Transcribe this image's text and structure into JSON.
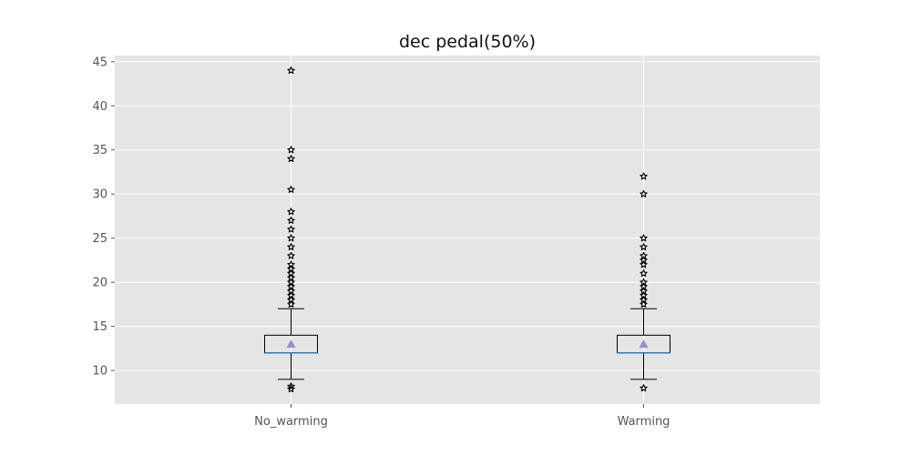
{
  "chart_data": {
    "type": "box",
    "title": "dec pedal(50%)",
    "xlabel": "",
    "ylabel": "",
    "categories": [
      "No_warming",
      "Warming"
    ],
    "ylim": [
      6.2,
      45.7
    ],
    "yticks": [
      10,
      15,
      20,
      25,
      30,
      35,
      40,
      45
    ],
    "grid": true,
    "boxes": [
      {
        "category": "No_warming",
        "whisker_low": 9,
        "q1": 12,
        "median": 12,
        "q3": 14,
        "whisker_high": 17,
        "mean": 13,
        "outliers": [
          44,
          35,
          34,
          30.5,
          28,
          27,
          26,
          25,
          24,
          23,
          22,
          21.5,
          21,
          20.5,
          20,
          19.5,
          19,
          18.5,
          18,
          17.5,
          8.2,
          7.9
        ]
      },
      {
        "category": "Warming",
        "whisker_low": 9,
        "q1": 12,
        "median": 12,
        "q3": 14,
        "whisker_high": 17,
        "mean": 13,
        "outliers": [
          32,
          30,
          25,
          24,
          23,
          22.5,
          22,
          21,
          20,
          19.5,
          19,
          18.5,
          18,
          17.5,
          8
        ]
      }
    ],
    "colors": {
      "plot_background": "#e5e5e5",
      "grid": "#ffffff",
      "box": "#000000",
      "median": "#3a78b4",
      "mean": "#988ed5",
      "outlier": "#000000"
    }
  }
}
